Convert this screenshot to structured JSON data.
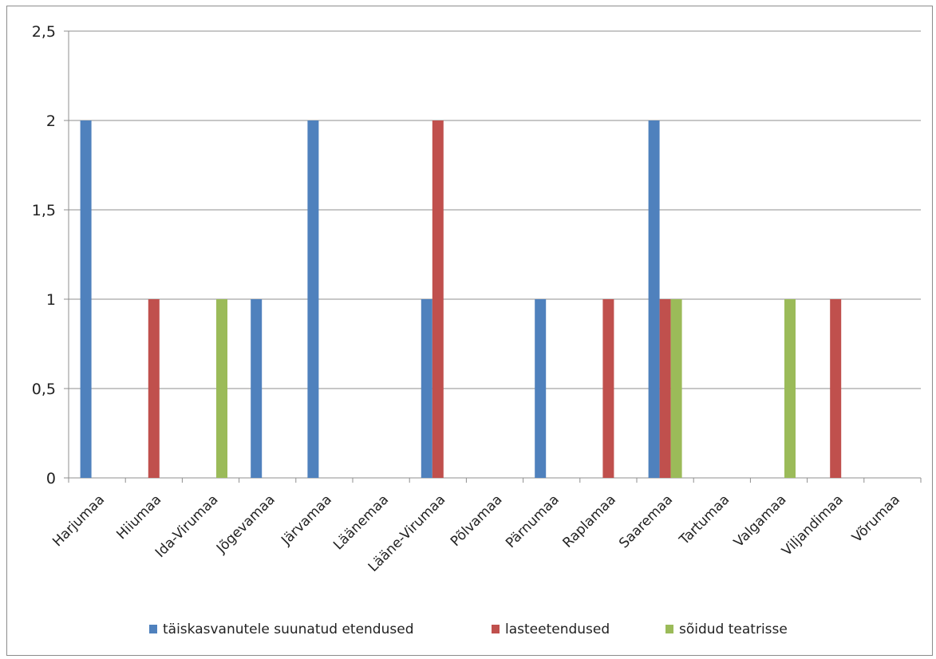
{
  "chart_data": {
    "type": "bar",
    "title": "",
    "xlabel": "",
    "ylabel": "",
    "ylim": [
      0,
      2.5
    ],
    "yticks": [
      "0",
      "0,5",
      "1",
      "1,5",
      "2",
      "2,5"
    ],
    "grid": true,
    "legend_position": "bottom",
    "categories": [
      "Harjumaa",
      "Hiiumaa",
      "Ida-Virumaa",
      "Jõgevamaa",
      "Järvamaa",
      "Läänemaa",
      "Lääne-Virumaa",
      "Põlvamaa",
      "Pärnumaa",
      "Raplamaa",
      "Saaremaa",
      "Tartumaa",
      "Valgamaa",
      "Viljandimaa",
      "Võrumaa"
    ],
    "series": [
      {
        "name": "täiskasvanutele suunatud etendused",
        "color": "#4F81BD",
        "values": [
          2,
          0,
          0,
          1,
          2,
          0,
          1,
          0,
          1,
          0,
          2,
          0,
          0,
          0,
          0
        ]
      },
      {
        "name": "lasteetendused",
        "color": "#C0504D",
        "values": [
          0,
          1,
          0,
          0,
          0,
          0,
          2,
          0,
          0,
          1,
          1,
          0,
          0,
          1,
          0
        ]
      },
      {
        "name": "sõidud teatrisse",
        "color": "#9BBB59",
        "values": [
          0,
          0,
          1,
          0,
          0,
          0,
          0,
          0,
          0,
          0,
          1,
          0,
          1,
          0,
          0
        ]
      }
    ]
  }
}
